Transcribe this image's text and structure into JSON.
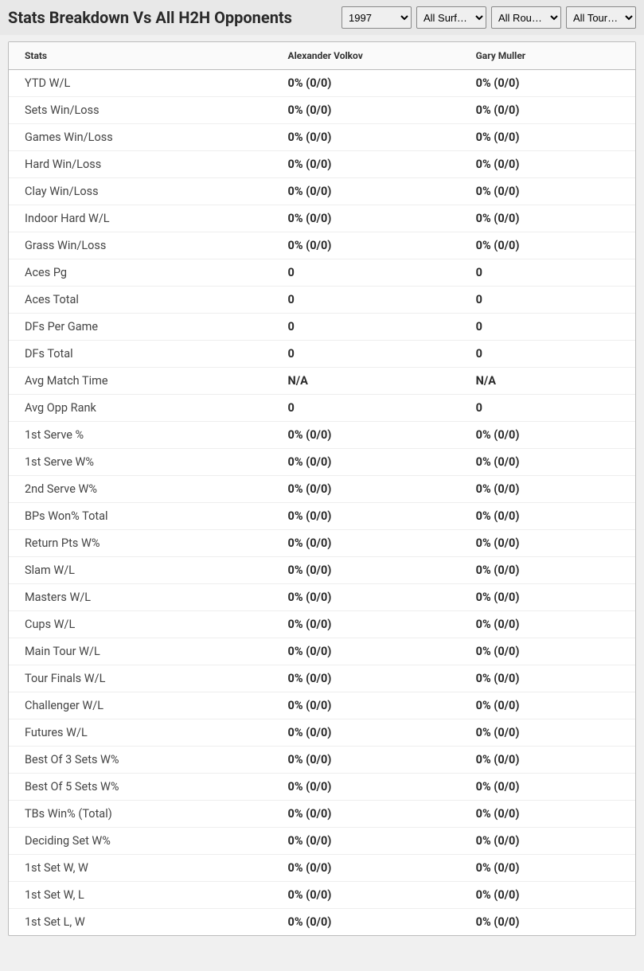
{
  "header": {
    "title": "Stats Breakdown Vs All H2H Opponents"
  },
  "filters": {
    "year": {
      "selected": "1997",
      "options": [
        "1997"
      ]
    },
    "surface": {
      "selected": "All Surf…",
      "options": [
        "All Surf…"
      ]
    },
    "round": {
      "selected": "All Rou…",
      "options": [
        "All Rou…"
      ]
    },
    "tournament": {
      "selected": "All Tour…",
      "options": [
        "All Tour…"
      ]
    }
  },
  "table": {
    "columns": [
      "Stats",
      "Alexander Volkov",
      "Gary Muller"
    ],
    "rows": [
      [
        "YTD W/L",
        "0% (0/0)",
        "0% (0/0)"
      ],
      [
        "Sets Win/Loss",
        "0% (0/0)",
        "0% (0/0)"
      ],
      [
        "Games Win/Loss",
        "0% (0/0)",
        "0% (0/0)"
      ],
      [
        "Hard Win/Loss",
        "0% (0/0)",
        "0% (0/0)"
      ],
      [
        "Clay Win/Loss",
        "0% (0/0)",
        "0% (0/0)"
      ],
      [
        "Indoor Hard W/L",
        "0% (0/0)",
        "0% (0/0)"
      ],
      [
        "Grass Win/Loss",
        "0% (0/0)",
        "0% (0/0)"
      ],
      [
        "Aces Pg",
        "0",
        "0"
      ],
      [
        "Aces Total",
        "0",
        "0"
      ],
      [
        "DFs Per Game",
        "0",
        "0"
      ],
      [
        "DFs Total",
        "0",
        "0"
      ],
      [
        "Avg Match Time",
        "N/A",
        "N/A"
      ],
      [
        "Avg Opp Rank",
        "0",
        "0"
      ],
      [
        "1st Serve %",
        "0% (0/0)",
        "0% (0/0)"
      ],
      [
        "1st Serve W%",
        "0% (0/0)",
        "0% (0/0)"
      ],
      [
        "2nd Serve W%",
        "0% (0/0)",
        "0% (0/0)"
      ],
      [
        "BPs Won% Total",
        "0% (0/0)",
        "0% (0/0)"
      ],
      [
        "Return Pts W%",
        "0% (0/0)",
        "0% (0/0)"
      ],
      [
        "Slam W/L",
        "0% (0/0)",
        "0% (0/0)"
      ],
      [
        "Masters W/L",
        "0% (0/0)",
        "0% (0/0)"
      ],
      [
        "Cups W/L",
        "0% (0/0)",
        "0% (0/0)"
      ],
      [
        "Main Tour W/L",
        "0% (0/0)",
        "0% (0/0)"
      ],
      [
        "Tour Finals W/L",
        "0% (0/0)",
        "0% (0/0)"
      ],
      [
        "Challenger W/L",
        "0% (0/0)",
        "0% (0/0)"
      ],
      [
        "Futures W/L",
        "0% (0/0)",
        "0% (0/0)"
      ],
      [
        "Best Of 3 Sets W%",
        "0% (0/0)",
        "0% (0/0)"
      ],
      [
        "Best Of 5 Sets W%",
        "0% (0/0)",
        "0% (0/0)"
      ],
      [
        "TBs Win% (Total)",
        "0% (0/0)",
        "0% (0/0)"
      ],
      [
        "Deciding Set W%",
        "0% (0/0)",
        "0% (0/0)"
      ],
      [
        "1st Set W, W",
        "0% (0/0)",
        "0% (0/0)"
      ],
      [
        "1st Set W, L",
        "0% (0/0)",
        "0% (0/0)"
      ],
      [
        "1st Set L, W",
        "0% (0/0)",
        "0% (0/0)"
      ]
    ]
  },
  "colors": {
    "page_bg": "#f0f0f0",
    "header_bg": "#e8e8e8",
    "table_bg": "#ffffff",
    "border": "#bbbbbb",
    "row_divider": "#eeeeee",
    "title_color": "#2a2a2a",
    "stat_label_color": "#444444",
    "value_color": "#2a2a2a"
  }
}
